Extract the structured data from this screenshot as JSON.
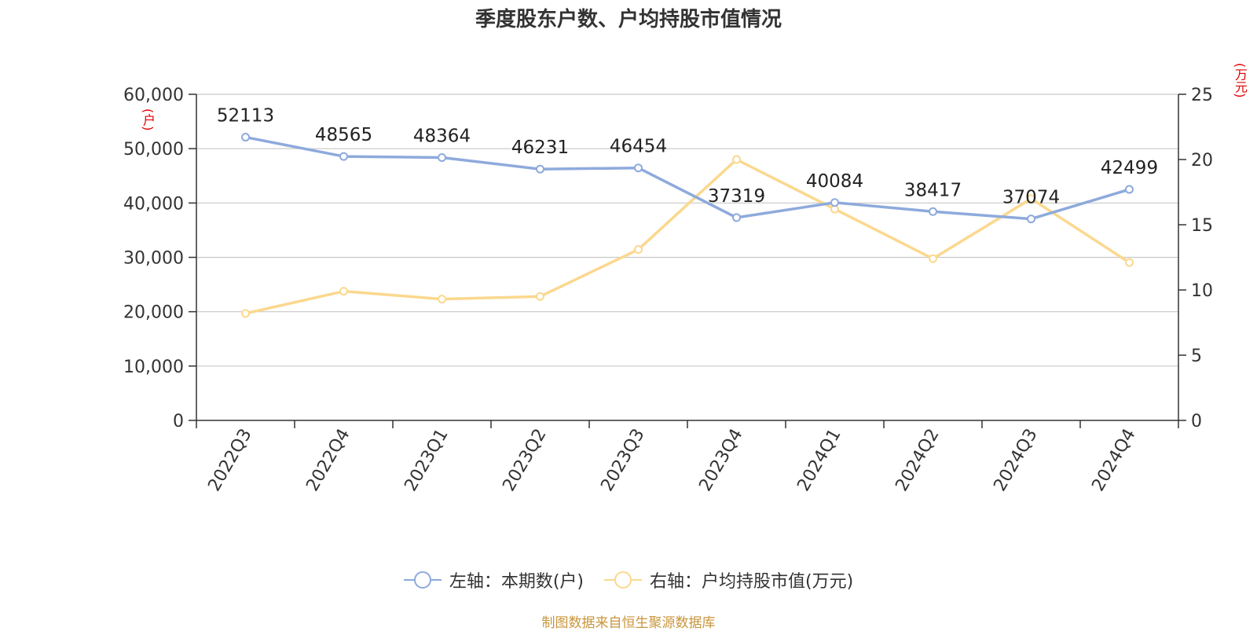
{
  "title": "季度股东户数、户均持股市值情况",
  "source": "制图数据来自恒生聚源数据库",
  "colors": {
    "left_series": "#8eaadc",
    "right_series": "#fbd88e",
    "unit_label": "#e00000",
    "source": "#c8963c",
    "grid": "#c8c8c8",
    "axis": "#333333"
  },
  "chart_data": {
    "type": "line",
    "title": "季度股东户数、户均持股市值情况",
    "categories": [
      "2022Q3",
      "2022Q4",
      "2023Q1",
      "2023Q2",
      "2023Q3",
      "2023Q4",
      "2024Q1",
      "2024Q2",
      "2024Q3",
      "2024Q4"
    ],
    "y_left": {
      "unit": "(户)",
      "ylim": [
        0,
        60000
      ],
      "ticks": [
        "0",
        "10,000",
        "20,000",
        "30,000",
        "40,000",
        "50,000",
        "60,000"
      ]
    },
    "y_right": {
      "unit": "(万元)",
      "ylim": [
        0,
        25
      ],
      "ticks": [
        "0",
        "5",
        "10",
        "15",
        "20",
        "25"
      ]
    },
    "series": [
      {
        "name": "左轴：本期数(户)",
        "axis": "left",
        "values": [
          52113,
          48565,
          48364,
          46231,
          46454,
          37319,
          40084,
          38417,
          37074,
          42499
        ],
        "labels": [
          "52113",
          "48565",
          "48364",
          "46231",
          "46454",
          "37319",
          "40084",
          "38417",
          "37074",
          "42499"
        ]
      },
      {
        "name": "右轴：户均持股市值(万元)",
        "axis": "right",
        "values": [
          8.2,
          9.9,
          9.3,
          9.5,
          13.1,
          20.0,
          16.2,
          12.4,
          17.0,
          12.1
        ]
      }
    ],
    "grid": true,
    "legend_position": "bottom-center"
  }
}
